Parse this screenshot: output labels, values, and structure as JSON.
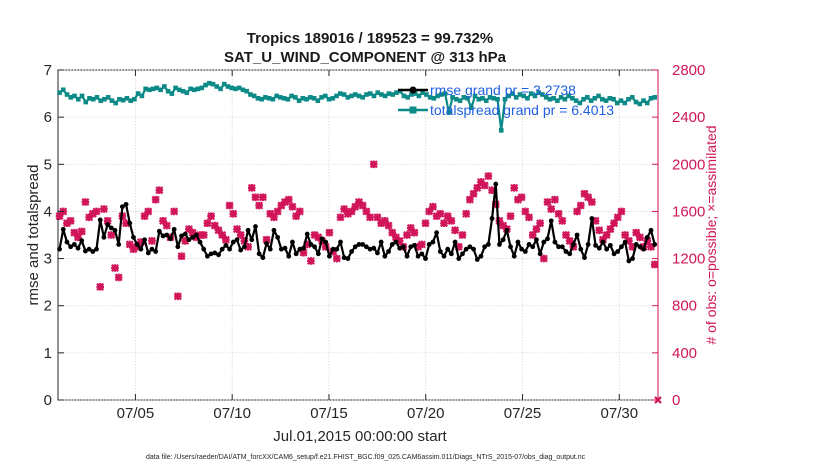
{
  "chart_data": {
    "type": "line",
    "title": "Tropics 189016 / 189523 = 99.732%",
    "subtitle": "SAT_U_WIND_COMPONENT @ 313 hPa",
    "xlabel": "Jul.01,2015 00:00:00 start",
    "ylabel": "rmse and totalspread",
    "ylabel_right": "# of obs: o=possible; ×=assimilated",
    "footnote": "data file: /Users/raeder/DAI/ATM_forcXX/CAM6_setup/f.e21.FHIST_BGC.f09_025.CAM6assim.011/Diags_NTrS_2015-07/obs_diag_output.nc",
    "xlim": [
      1,
      32
    ],
    "ylim": [
      0,
      7
    ],
    "ylim_right": [
      0,
      2800
    ],
    "x_ticks": [
      5,
      10,
      15,
      20,
      25,
      30
    ],
    "x_tick_labels": [
      "07/05",
      "07/10",
      "07/15",
      "07/20",
      "07/25",
      "07/30"
    ],
    "y_ticks": [
      0,
      1,
      2,
      3,
      4,
      5,
      6,
      7
    ],
    "y_tick_labels": [
      "0",
      "1",
      "2",
      "3",
      "4",
      "5",
      "6",
      "7"
    ],
    "y_right_ticks": [
      0,
      400,
      800,
      1200,
      1600,
      2000,
      2400,
      2800
    ],
    "y_right_tick_labels": [
      "0",
      "400",
      "800",
      "1200",
      "1600",
      "2000",
      "2400",
      "2800"
    ],
    "colors": {
      "rmse": "#000000",
      "spread": "#0b8a87",
      "obs": "#d1155a",
      "legend_text": "#1f5fe0"
    },
    "series": [
      {
        "name": "rmse grand pr = 3.2738",
        "axis": "left",
        "values": [
          3.2,
          3.62,
          3.35,
          3.25,
          3.3,
          3.22,
          3.38,
          3.16,
          3.2,
          3.15,
          3.2,
          3.82,
          3.45,
          3.72,
          3.65,
          3.6,
          3.3,
          4.1,
          4.15,
          3.75,
          3.45,
          3.3,
          3.2,
          3.4,
          3.12,
          3.2,
          3.15,
          3.58,
          3.48,
          3.5,
          3.42,
          3.62,
          3.25,
          3.48,
          3.52,
          3.4,
          3.45,
          3.5,
          3.35,
          3.2,
          3.05,
          3.1,
          3.12,
          3.08,
          3.2,
          3.28,
          3.2,
          3.35,
          3.4,
          3.18,
          3.25,
          3.6,
          3.4,
          3.68,
          3.1,
          3.02,
          3.32,
          3.2,
          3.6,
          3.45,
          3.2,
          3.22,
          3.05,
          3.35,
          3.1,
          3.2,
          3.22,
          3.52,
          3.3,
          3.25,
          3.1,
          3.42,
          3.35,
          3.05,
          3.2,
          3.2,
          3.35,
          3.02,
          3.0,
          3.15,
          3.25,
          3.3,
          3.3,
          3.25,
          3.2,
          3.22,
          3.12,
          3.35,
          3.05,
          3.15,
          3.3,
          3.35,
          3.22,
          3.25,
          3.05,
          3.25,
          3.28,
          3.05,
          3.1,
          3.0,
          3.3,
          3.35,
          3.55,
          3.15,
          3.05,
          3.2,
          3.1,
          3.35,
          3.0,
          3.1,
          3.2,
          3.25,
          3.2,
          2.98,
          3.05,
          3.25,
          3.3,
          3.85,
          4.58,
          3.3,
          3.4,
          3.6,
          3.25,
          3.05,
          3.35,
          3.2,
          3.15,
          3.3,
          3.25,
          3.4,
          3.1,
          3.35,
          3.42,
          3.8,
          3.35,
          3.25,
          3.25,
          3.15,
          3.1,
          3.3,
          3.5,
          3.2,
          3.02,
          3.3,
          3.85,
          3.28,
          3.22,
          3.35,
          3.2,
          3.28,
          3.1,
          3.15,
          3.25,
          3.35,
          2.95,
          3.0,
          3.3,
          3.25,
          3.2,
          3.45,
          3.6,
          3.3
        ]
      },
      {
        "name": "totalspread grand pr = 6.4013",
        "axis": "left",
        "values": [
          6.52,
          6.58,
          6.48,
          6.42,
          6.45,
          6.38,
          6.45,
          6.32,
          6.4,
          6.38,
          6.42,
          6.35,
          6.38,
          6.42,
          6.35,
          6.3,
          6.38,
          6.36,
          6.4,
          6.35,
          6.38,
          6.5,
          6.45,
          6.6,
          6.58,
          6.6,
          6.62,
          6.58,
          6.65,
          6.55,
          6.5,
          6.62,
          6.58,
          6.55,
          6.52,
          6.6,
          6.58,
          6.6,
          6.62,
          6.68,
          6.72,
          6.7,
          6.65,
          6.6,
          6.7,
          6.65,
          6.62,
          6.6,
          6.62,
          6.58,
          6.55,
          6.48,
          6.45,
          6.4,
          6.38,
          6.42,
          6.4,
          6.38,
          6.45,
          6.42,
          6.4,
          6.38,
          6.45,
          6.42,
          6.35,
          6.4,
          6.38,
          6.42,
          6.4,
          6.35,
          6.42,
          6.45,
          6.38,
          6.4,
          6.45,
          6.5,
          6.48,
          6.42,
          6.45,
          6.48,
          6.45,
          6.42,
          6.48,
          6.5,
          6.45,
          6.52,
          6.48,
          6.45,
          6.5,
          6.48,
          6.52,
          6.55,
          6.45,
          6.42,
          6.48,
          6.5,
          6.45,
          6.52,
          6.48,
          6.42,
          6.4,
          6.45,
          6.48,
          6.5,
          6.1,
          6.42,
          6.38,
          6.35,
          6.42,
          6.4,
          6.2,
          6.45,
          6.38,
          6.4,
          6.35,
          6.42,
          6.4,
          6.38,
          5.72,
          6.38,
          6.45,
          6.5,
          6.42,
          6.48,
          6.45,
          6.4,
          6.5,
          6.45,
          6.52,
          6.48,
          6.42,
          6.38,
          6.4,
          6.35,
          6.42,
          6.38,
          6.45,
          6.4,
          6.35,
          6.3,
          6.38,
          6.42,
          6.35,
          6.4,
          6.45,
          6.38,
          6.35,
          6.4,
          6.38,
          6.3,
          6.35,
          6.3,
          6.38,
          6.42,
          6.32,
          6.28,
          6.35,
          6.3,
          6.4,
          6.42
        ]
      },
      {
        "name": "obs assimilated",
        "axis": "right",
        "values": [
          1560,
          1600,
          1500,
          1520,
          1420,
          1380,
          1430,
          1680,
          1550,
          1580,
          1600,
          960,
          1620,
          1520,
          1400,
          1120,
          1040,
          1560,
          1500,
          1320,
          1280,
          1300,
          1340,
          1560,
          1600,
          1350,
          1700,
          1780,
          1520,
          1480,
          1380,
          1600,
          880,
          1220,
          1350,
          1450,
          1420,
          1380,
          1400,
          1400,
          1500,
          1560,
          1480,
          1440,
          1400,
          1360,
          1650,
          1580,
          1450,
          1400,
          1350,
          1300,
          1800,
          1720,
          1650,
          1720,
          1360,
          1580,
          1550,
          1600,
          1650,
          1680,
          1700,
          1640,
          1560,
          1600,
          1250,
          1320,
          1180,
          1400,
          1380,
          1350,
          1300,
          1420,
          1260,
          1200,
          1550,
          1620,
          1580,
          1600,
          1640,
          1680,
          1650,
          1600,
          1550,
          2000,
          1550,
          1500,
          1520,
          1480,
          1420,
          1380,
          1350,
          1300,
          1400,
          1460,
          1420,
          1300,
          1320,
          1500,
          1600,
          1640,
          1560,
          1580,
          1500,
          1560,
          1520,
          1440,
          1300,
          1400,
          1580,
          1700,
          1750,
          1800,
          1850,
          1820,
          1900,
          1780,
          1660,
          1520,
          1480,
          1450,
          1560,
          1800,
          1700,
          1720,
          1600,
          1550,
          1400,
          1450,
          1500,
          1200,
          1680,
          1620,
          1700,
          1580,
          1520,
          1400,
          1350,
          1300,
          1600,
          1650,
          1750,
          1720,
          1680,
          1520,
          1440,
          1360,
          1400,
          1450,
          1500,
          1550,
          1600,
          1400,
          1350,
          1300,
          1420,
          1380,
          1300,
          1350,
          1300,
          1150
        ]
      }
    ]
  },
  "legend": {
    "rmse_label": "rmse grand pr = 3.2738",
    "spread_label": "totalspread grand pr = 6.4013"
  }
}
